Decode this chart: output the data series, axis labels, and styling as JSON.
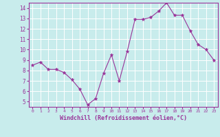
{
  "x": [
    0,
    1,
    2,
    3,
    4,
    5,
    6,
    7,
    8,
    9,
    10,
    11,
    12,
    13,
    14,
    15,
    16,
    17,
    18,
    19,
    20,
    21,
    22,
    23
  ],
  "y": [
    8.5,
    8.8,
    8.1,
    8.1,
    7.8,
    7.1,
    6.2,
    4.7,
    5.3,
    7.7,
    9.5,
    7.0,
    9.8,
    12.9,
    12.9,
    13.1,
    13.7,
    14.5,
    13.3,
    13.3,
    11.8,
    10.5,
    10.0,
    9.0
  ],
  "ylim": [
    4.5,
    14.5
  ],
  "yticks": [
    5,
    6,
    7,
    8,
    9,
    10,
    11,
    12,
    13,
    14
  ],
  "xticks": [
    0,
    1,
    2,
    3,
    4,
    5,
    6,
    7,
    8,
    9,
    10,
    11,
    12,
    13,
    14,
    15,
    16,
    17,
    18,
    19,
    20,
    21,
    22,
    23
  ],
  "xlabel": "Windchill (Refroidissement éolien,°C)",
  "line_color": "#993399",
  "marker_color": "#993399",
  "bg_color": "#c8ecec",
  "grid_color": "#ffffff",
  "axis_label_color": "#993399",
  "tick_label_color": "#993399",
  "spine_color": "#993399"
}
